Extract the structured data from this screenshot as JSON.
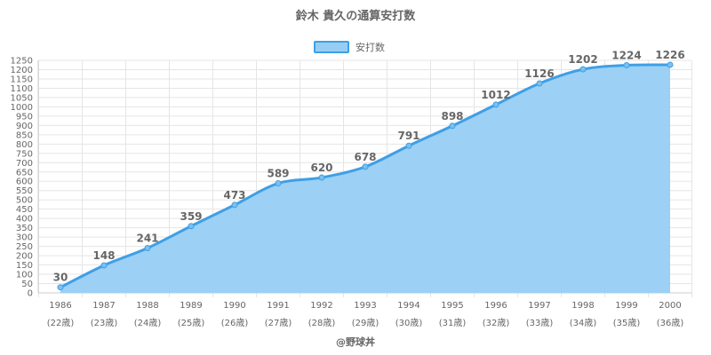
{
  "chart_data": {
    "type": "area",
    "title": "鈴木 貴久の通算安打数",
    "legend": {
      "label": "安打数",
      "position": "top"
    },
    "categories": [
      "1986",
      "1987",
      "1988",
      "1989",
      "1990",
      "1991",
      "1992",
      "1993",
      "1994",
      "1995",
      "1996",
      "1997",
      "1998",
      "1999",
      "2000"
    ],
    "sublabels": [
      "(22歳)",
      "(23歳)",
      "(24歳)",
      "(25歳)",
      "(26歳)",
      "(27歳)",
      "(28歳)",
      "(29歳)",
      "(30歳)",
      "(31歳)",
      "(32歳)",
      "(33歳)",
      "(34歳)",
      "(35歳)",
      "(36歳)"
    ],
    "series": [
      {
        "name": "安打数",
        "values": [
          30,
          148,
          241,
          359,
          473,
          589,
          620,
          678,
          791,
          898,
          1012,
          1126,
          1202,
          1224,
          1226
        ]
      }
    ],
    "ylim": [
      0,
      1250
    ],
    "ystep": 50,
    "grid": true,
    "colors": {
      "fill": "#97cdf3",
      "line": "#3e9fe6",
      "grid": "#e5e5e5",
      "axis": "#cccccc"
    },
    "credit": "@野球丼"
  }
}
